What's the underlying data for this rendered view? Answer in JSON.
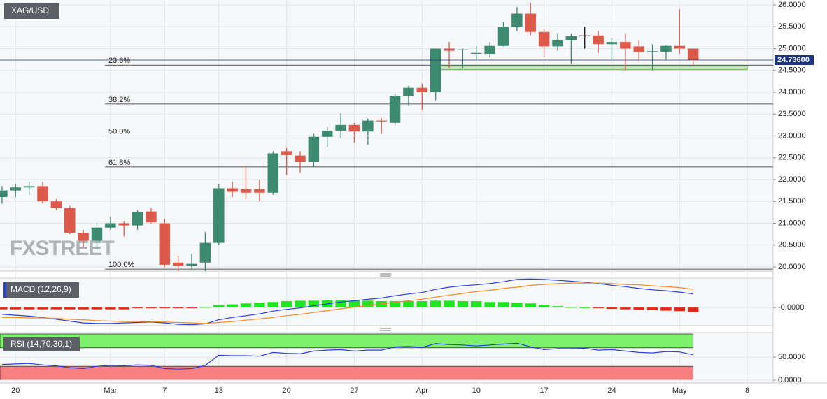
{
  "chart_data": [
    {
      "type": "candlestick",
      "title": "XAG/USD",
      "x": [
        0,
        1,
        2,
        3,
        4,
        5,
        6,
        7,
        8,
        9,
        10,
        11,
        12,
        13,
        14,
        15,
        16,
        17,
        18,
        19,
        20,
        21,
        22,
        23,
        24,
        25,
        26,
        27,
        28,
        29,
        30,
        31,
        32,
        33,
        34,
        35,
        36,
        37,
        38,
        39,
        40,
        41,
        42,
        43,
        44,
        45,
        46,
        47,
        48,
        49,
        50,
        51
      ],
      "open": [
        21.6,
        21.75,
        21.82,
        21.85,
        21.5,
        21.35,
        20.78,
        20.6,
        20.9,
        21.0,
        20.95,
        21.27,
        21.0,
        20.1,
        20.03,
        20.1,
        20.55,
        21.8,
        21.78,
        21.78,
        21.7,
        22.65,
        22.55,
        22.4,
        22.98,
        23.12,
        23.25,
        23.1,
        23.35,
        23.3,
        23.92,
        24.1,
        24.0,
        25.0,
        24.97,
        24.88,
        24.88,
        25.06,
        25.5,
        25.8,
        25.38,
        25.05,
        25.2,
        25.3,
        25.3,
        25.1,
        25.15,
        25.05,
        24.93,
        24.93,
        25.06,
        25.0
      ],
      "high": [
        21.85,
        21.9,
        21.95,
        21.95,
        21.55,
        21.4,
        20.85,
        21.0,
        21.15,
        21.05,
        21.3,
        21.35,
        21.1,
        20.25,
        20.3,
        20.8,
        21.9,
        21.95,
        22.3,
        22.0,
        22.65,
        22.72,
        22.65,
        23.05,
        23.2,
        23.52,
        23.3,
        23.4,
        23.4,
        23.95,
        24.15,
        24.2,
        25.0,
        25.15,
        25.0,
        25.05,
        25.15,
        25.6,
        25.95,
        26.05,
        25.45,
        25.35,
        25.35,
        25.5,
        25.4,
        25.25,
        25.35,
        25.2,
        25.1,
        25.08,
        25.9,
        25.0
      ],
      "low": [
        21.45,
        21.6,
        21.65,
        21.45,
        21.3,
        20.75,
        20.45,
        20.4,
        20.85,
        20.7,
        20.85,
        21.0,
        20.0,
        19.9,
        19.95,
        19.9,
        20.5,
        21.6,
        21.55,
        21.5,
        21.65,
        22.1,
        22.15,
        22.3,
        22.75,
        22.95,
        22.85,
        22.8,
        23.05,
        23.25,
        23.7,
        23.6,
        23.82,
        24.55,
        24.55,
        24.75,
        24.8,
        25.05,
        25.4,
        25.3,
        24.8,
        24.95,
        24.65,
        25.0,
        24.9,
        24.75,
        24.5,
        24.7,
        24.5,
        24.75,
        24.88,
        24.62
      ],
      "close": [
        21.75,
        21.82,
        21.85,
        21.5,
        21.35,
        20.78,
        20.6,
        20.9,
        21.0,
        20.95,
        21.25,
        21.02,
        20.05,
        20.03,
        20.07,
        20.55,
        21.8,
        21.72,
        21.7,
        21.7,
        22.6,
        22.56,
        22.4,
        22.98,
        23.12,
        23.25,
        23.1,
        23.35,
        23.34,
        23.92,
        24.1,
        24.0,
        25.0,
        24.95,
        24.98,
        24.9,
        25.06,
        25.5,
        25.8,
        25.38,
        25.05,
        25.2,
        25.28,
        25.3,
        25.1,
        25.15,
        25.0,
        24.92,
        24.94,
        25.06,
        25.0,
        24.736
      ],
      "up_color": "#3e8a70",
      "down_color": "#dc5a4c",
      "flat_color": "#111111",
      "xlim": [
        -0.15,
        56.8
      ],
      "xticks": [
        {
          "value": 1,
          "label": "20"
        },
        {
          "value": 8,
          "label": "Mar"
        },
        {
          "value": 12,
          "label": "7"
        },
        {
          "value": 16,
          "label": "13"
        },
        {
          "value": 21,
          "label": "20"
        },
        {
          "value": 26,
          "label": "27"
        },
        {
          "value": 31,
          "label": "Apr"
        },
        {
          "value": 35,
          "label": "10"
        },
        {
          "value": 40,
          "label": "17"
        },
        {
          "value": 45,
          "label": "24"
        },
        {
          "value": 50,
          "label": "May"
        },
        {
          "value": 55,
          "label": "8"
        }
      ],
      "ylim": [
        19.9,
        26.1
      ],
      "yticks": [
        {
          "value": 20,
          "label": "20.0000"
        },
        {
          "value": 20.5,
          "label": "20.5000"
        },
        {
          "value": 21,
          "label": "21.0000"
        },
        {
          "value": 21.5,
          "label": "21.5000"
        },
        {
          "value": 22,
          "label": "22.0000"
        },
        {
          "value": 22.5,
          "label": "22.5000"
        },
        {
          "value": 23,
          "label": "23.0000"
        },
        {
          "value": 23.5,
          "label": "23.5000"
        },
        {
          "value": 24,
          "label": "24.0000"
        },
        {
          "value": 24.5,
          "label": "24.5000"
        },
        {
          "value": 25,
          "label": "25.0000"
        },
        {
          "value": 25.5,
          "label": "25.5000"
        },
        {
          "value": 26,
          "label": "26.0000"
        }
      ],
      "last_price": {
        "value": 24.736,
        "label": "24.73600"
      },
      "last_price_color": "#1d3580",
      "fib_levels": [
        {
          "value": 24.62,
          "label": "23.6%"
        },
        {
          "value": 23.73,
          "label": "38.2%"
        },
        {
          "value": 23.0,
          "label": "50.0%"
        },
        {
          "value": 22.29,
          "label": "61.8%"
        },
        {
          "value": 19.95,
          "label": "100.0%"
        }
      ],
      "zone": {
        "x": [
          32,
          55
        ],
        "y": [
          24.52,
          24.6
        ],
        "color": "#7cc36b"
      },
      "watermark": "FXSTREET"
    },
    {
      "type": "macd",
      "title": "MACD (12,26,9)",
      "histogram": [
        -0.04,
        -0.04,
        -0.04,
        -0.04,
        -0.04,
        -0.04,
        -0.04,
        -0.04,
        -0.04,
        -0.04,
        -0.01,
        -0.01,
        -0.01,
        -0.01,
        -0.01,
        0.01,
        0.05,
        0.07,
        0.09,
        0.11,
        0.12,
        0.14,
        0.15,
        0.15,
        0.16,
        0.16,
        0.15,
        0.15,
        0.14,
        0.14,
        0.14,
        0.14,
        0.15,
        0.15,
        0.14,
        0.14,
        0.12,
        0.12,
        0.11,
        0.09,
        0.06,
        0.03,
        0.01,
        0.005,
        -0.01,
        -0.03,
        -0.04,
        -0.05,
        -0.06,
        -0.07,
        -0.08,
        -0.1
      ],
      "up_color": "#1ee61e",
      "down_color": "#e5261b",
      "lines": [
        {
          "color": "#2a3fd6",
          "values": [
            -0.15,
            -0.17,
            -0.19,
            -0.22,
            -0.26,
            -0.3,
            -0.34,
            -0.35,
            -0.35,
            -0.34,
            -0.33,
            -0.32,
            -0.34,
            -0.37,
            -0.38,
            -0.36,
            -0.27,
            -0.22,
            -0.18,
            -0.14,
            -0.08,
            -0.04,
            -0.01,
            0.04,
            0.08,
            0.12,
            0.15,
            0.18,
            0.21,
            0.26,
            0.3,
            0.33,
            0.4,
            0.45,
            0.48,
            0.5,
            0.53,
            0.57,
            0.62,
            0.63,
            0.62,
            0.6,
            0.58,
            0.56,
            0.53,
            0.49,
            0.46,
            0.42,
            0.39,
            0.37,
            0.34,
            0.3
          ]
        },
        {
          "color": "#f08a24",
          "values": [
            -0.22,
            -0.22,
            -0.23,
            -0.23,
            -0.24,
            -0.26,
            -0.27,
            -0.29,
            -0.3,
            -0.31,
            -0.31,
            -0.31,
            -0.32,
            -0.33,
            -0.34,
            -0.35,
            -0.33,
            -0.31,
            -0.28,
            -0.25,
            -0.22,
            -0.18,
            -0.15,
            -0.11,
            -0.07,
            -0.03,
            0.01,
            0.04,
            0.08,
            0.11,
            0.15,
            0.18,
            0.23,
            0.27,
            0.31,
            0.35,
            0.38,
            0.42,
            0.45,
            0.49,
            0.51,
            0.53,
            0.54,
            0.54,
            0.54,
            0.53,
            0.51,
            0.5,
            0.48,
            0.46,
            0.44,
            0.4
          ]
        }
      ],
      "ylim": [
        -0.4,
        0.65
      ],
      "yticks": [
        {
          "value": 0,
          "label": "-0.0000"
        }
      ]
    },
    {
      "type": "rsi",
      "title": "RSI (14,70,30,1)",
      "values": [
        34,
        35,
        36,
        33,
        31,
        27,
        25,
        30,
        32,
        31,
        33,
        32,
        25,
        24,
        25,
        32,
        54,
        53,
        53,
        52,
        60,
        58,
        57,
        63,
        65,
        66,
        63,
        65,
        65,
        72,
        73,
        71,
        79,
        77,
        76,
        74,
        76,
        78,
        80,
        72,
        66,
        68,
        68,
        69,
        65,
        66,
        63,
        60,
        59,
        62,
        61,
        55
      ],
      "color": "#2a3fd6",
      "bands": [
        {
          "from": 70,
          "to": 100,
          "color": "#7ff26b"
        },
        {
          "from": 0,
          "to": 30,
          "color": "#f88080"
        }
      ],
      "ylim": [
        0,
        100
      ],
      "yticks": [
        {
          "value": 50,
          "label": "50.0000"
        },
        {
          "value": 0,
          "label": "0.0000"
        }
      ]
    }
  ]
}
